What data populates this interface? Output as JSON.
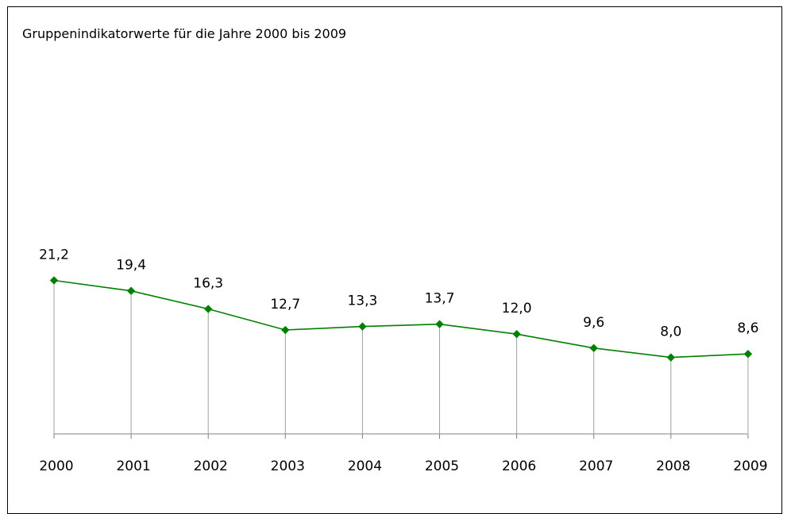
{
  "chart_data": {
    "type": "line",
    "title": "Gruppenindikatorwerte für die Jahre 2000 bis 2009",
    "xlabel": "",
    "ylabel": "",
    "categories": [
      "2000",
      "2001",
      "2002",
      "2003",
      "2004",
      "2005",
      "2006",
      "2007",
      "2008",
      "2009"
    ],
    "series": [
      {
        "values": [
          21.2,
          19.4,
          16.3,
          12.7,
          13.3,
          13.7,
          12.0,
          9.6,
          8.0,
          8.6
        ],
        "data_labels": [
          "21,2",
          "19,4",
          "16,3",
          "12,7",
          "13,3",
          "13,7",
          "12,0",
          "9,6",
          "8,0",
          "8,6"
        ],
        "color": "#008000"
      }
    ],
    "drop_lines": true,
    "marker": "diamond",
    "grid": false,
    "legend": "none"
  }
}
